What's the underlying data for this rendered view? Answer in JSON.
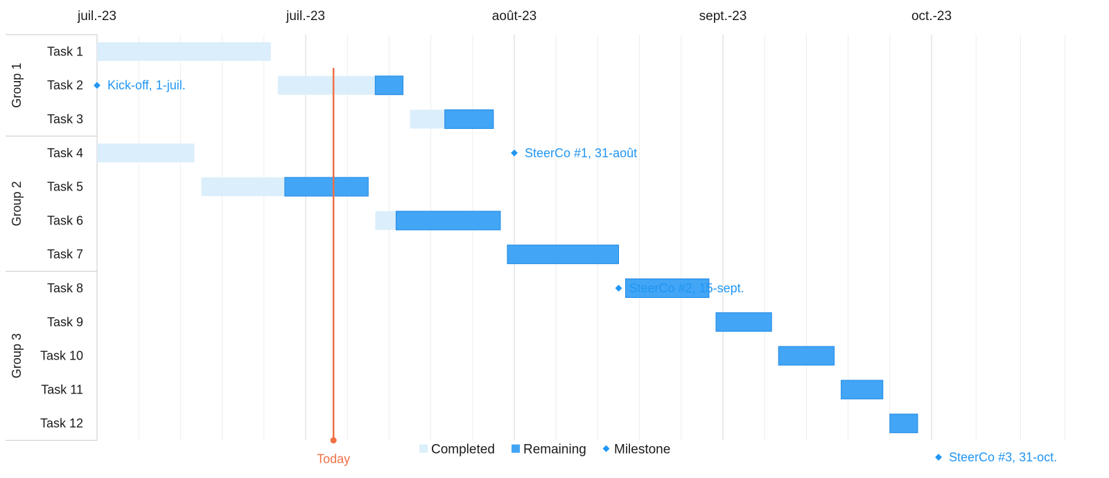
{
  "chart_data": {
    "type": "gantt",
    "x_start": "2023-06-01",
    "x_end": "2023-10-31",
    "x_ticks": [
      {
        "date": "2023-06-01",
        "label": "juil.-23"
      },
      {
        "date": "2023-07-01",
        "label": "juil.-23"
      },
      {
        "date": "2023-07-31",
        "label": "août-23"
      },
      {
        "date": "2023-08-30",
        "label": "sept.-23"
      },
      {
        "date": "2023-09-29",
        "label": "oct.-23"
      }
    ],
    "groups": [
      {
        "name": "Group 1",
        "tasks": [
          "Task 1",
          "Task 2",
          "Task 3"
        ]
      },
      {
        "name": "Group 2",
        "tasks": [
          "Task 4",
          "Task 5",
          "Task 6",
          "Task 7"
        ]
      },
      {
        "name": "Group 3",
        "tasks": [
          "Task 8",
          "Task 9",
          "Task 10",
          "Task 11",
          "Task 12"
        ]
      }
    ],
    "tasks": [
      {
        "name": "Task 1",
        "start": "2023-06-01",
        "split": "2023-06-26",
        "end": "2023-06-26"
      },
      {
        "name": "Task 2",
        "start": "2023-06-27",
        "split": "2023-07-11",
        "end": "2023-07-15"
      },
      {
        "name": "Task 3",
        "start": "2023-07-16",
        "split": "2023-07-21",
        "end": "2023-07-28"
      },
      {
        "name": "Task 4",
        "start": "2023-06-01",
        "split": "2023-06-15",
        "end": "2023-06-15"
      },
      {
        "name": "Task 5",
        "start": "2023-06-16",
        "split": "2023-06-28",
        "end": "2023-07-10"
      },
      {
        "name": "Task 6",
        "start": "2023-07-11",
        "split": "2023-07-14",
        "end": "2023-07-29"
      },
      {
        "name": "Task 7",
        "start": "2023-07-30",
        "split": "2023-07-30",
        "end": "2023-08-15"
      },
      {
        "name": "Task 8",
        "start": "2023-08-16",
        "split": "2023-08-16",
        "end": "2023-08-28"
      },
      {
        "name": "Task 9",
        "start": "2023-08-29",
        "split": "2023-08-29",
        "end": "2023-09-06"
      },
      {
        "name": "Task 10",
        "start": "2023-09-07",
        "split": "2023-09-07",
        "end": "2023-09-15"
      },
      {
        "name": "Task 11",
        "start": "2023-09-16",
        "split": "2023-09-16",
        "end": "2023-09-22"
      },
      {
        "name": "Task 12",
        "start": "2023-09-23",
        "split": "2023-09-23",
        "end": "2023-09-27"
      }
    ],
    "milestones": [
      {
        "label": "Kick-off, 1-juil.",
        "date": "2023-06-01",
        "row": 1.5
      },
      {
        "label": "SteerCo #1, 31-août",
        "date": "2023-07-31",
        "row": 3.5
      },
      {
        "label": "SteerCo #2, 15-sept.",
        "date": "2023-08-15",
        "row": 7.5
      },
      {
        "label": "SteerCo #3, 31-oct.",
        "date": "2023-09-30",
        "row": 12.5
      }
    ],
    "today": {
      "label": "Today",
      "date": "2023-07-05"
    },
    "legend": {
      "completed": "Completed",
      "remaining": "Remaining",
      "milestone": "Milestone",
      "placement": "bottom"
    },
    "colors": {
      "completed": "#dbeefb",
      "remaining": "#42a5f5",
      "remaining_border": "#1e88e5",
      "milestone": "#2196f3",
      "today": "#f07046",
      "grid_minor": "#ececec",
      "grid_major": "#d4d4d4",
      "frame": "#c8c8c8"
    }
  }
}
